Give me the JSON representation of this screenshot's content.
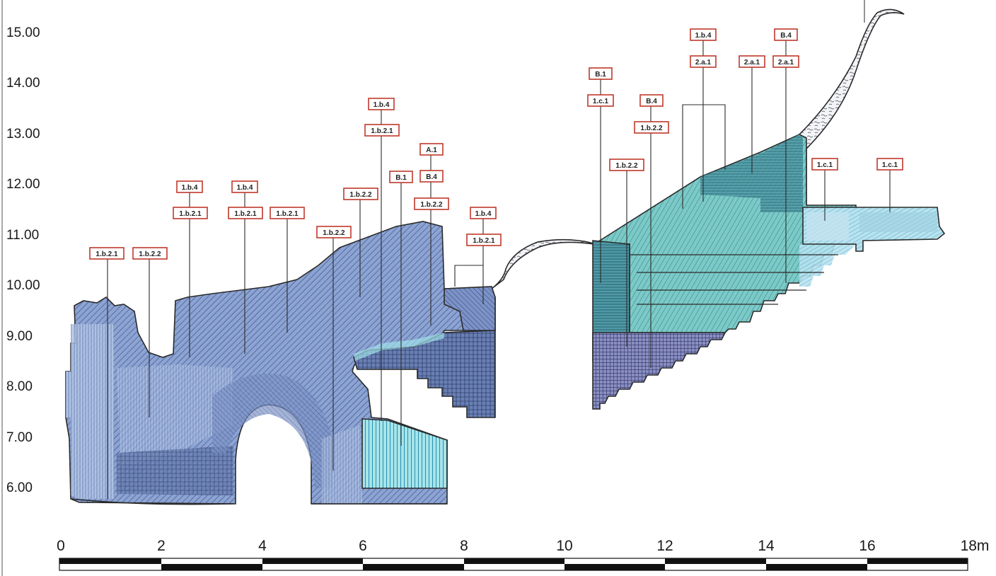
{
  "elevation_labels": [
    "15.00",
    "14.00",
    "13.00",
    "12.00",
    "11.00",
    "10.00",
    "9.00",
    "8.00",
    "7.00",
    "6.00"
  ],
  "scale_labels": [
    "0",
    "2",
    "4",
    "6",
    "8",
    "10",
    "12",
    "14",
    "16",
    "18m"
  ],
  "tags": [
    {
      "id": "t1",
      "text": "1.b.2.1"
    },
    {
      "id": "t2",
      "text": "1.b.2.2"
    },
    {
      "id": "t3",
      "text": "1.b.4"
    },
    {
      "id": "t4",
      "text": "1.b.2.1"
    },
    {
      "id": "t5",
      "text": "1.b.4"
    },
    {
      "id": "t6",
      "text": "1.b.2.1"
    },
    {
      "id": "t7",
      "text": "1.b.2.1"
    },
    {
      "id": "t8",
      "text": "1.b.2.2"
    },
    {
      "id": "t9",
      "text": "1.b.2.2"
    },
    {
      "id": "t10",
      "text": "1.b.4"
    },
    {
      "id": "t11",
      "text": "1.b.2.1"
    },
    {
      "id": "t12",
      "text": "B.1"
    },
    {
      "id": "t13",
      "text": "A.1"
    },
    {
      "id": "t14",
      "text": "B.4"
    },
    {
      "id": "t15",
      "text": "1.b.2.2"
    },
    {
      "id": "t16",
      "text": "1.b.4"
    },
    {
      "id": "t17",
      "text": "1.b.2.1"
    },
    {
      "id": "t18",
      "text": "B.1"
    },
    {
      "id": "t19",
      "text": "1.c.1"
    },
    {
      "id": "t20",
      "text": "B.4"
    },
    {
      "id": "t21",
      "text": "1.b.2.2"
    },
    {
      "id": "t22",
      "text": "1.b.2.2"
    },
    {
      "id": "t23",
      "text": "1.b.4"
    },
    {
      "id": "t24",
      "text": "2.a.1"
    },
    {
      "id": "t25",
      "text": "2.a.1"
    },
    {
      "id": "t26",
      "text": "B.4"
    },
    {
      "id": "t27",
      "text": "2.a.1"
    },
    {
      "id": "t28",
      "text": "1.c.1"
    },
    {
      "id": "t29",
      "text": "1.c.1"
    }
  ],
  "colors": {
    "masonry_blue": "#7f97c9",
    "masonry_dark": "#5c72ab",
    "render_light": "#bcd0ea",
    "cyan_fill": "#8fdde6",
    "teal_fill": "#6fb7b8",
    "tag_border": "#c0392b"
  }
}
